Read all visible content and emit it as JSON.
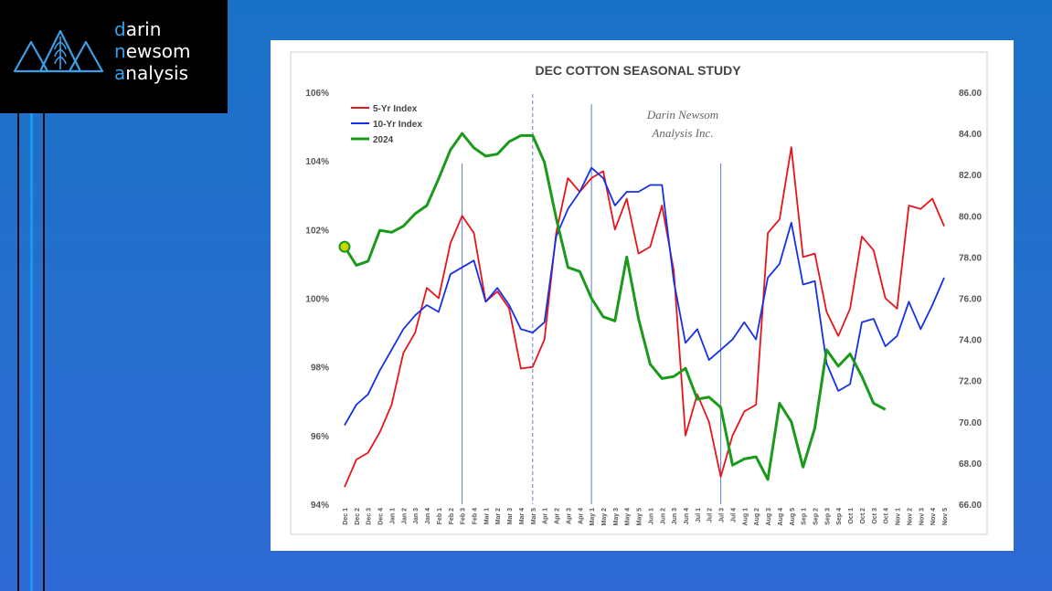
{
  "brand": {
    "line1_accent": "d",
    "line1_rest": "arin",
    "line2_accent": "n",
    "line2_rest": "ewsom",
    "line3_accent": "a",
    "line3_rest": "nalysis"
  },
  "colors": {
    "background": "#1f6fcc",
    "accent": "#3aa0ea",
    "series_5yr": "#e8141c",
    "series_10yr": "#1630e6",
    "series_2024": "#1a9a1a"
  },
  "chart_data": {
    "type": "line",
    "title": "DEC COTTON SEASONAL STUDY",
    "watermark": [
      "Darin Newsom",
      "Analysis Inc."
    ],
    "xlabel": "",
    "ylabel": "",
    "y_left_ticks": [
      "94%",
      "96%",
      "98%",
      "100%",
      "102%",
      "104%",
      "106%"
    ],
    "y_left_range": [
      94,
      106
    ],
    "y_right_ticks": [
      "66.00",
      "68.00",
      "70.00",
      "72.00",
      "74.00",
      "76.00",
      "78.00",
      "80.00",
      "82.00",
      "84.00",
      "86.00"
    ],
    "y_right_range": [
      66,
      86
    ],
    "legend_position": "top-left",
    "grid": false,
    "categories": [
      "Dec 1",
      "Dec 2",
      "Dec 3",
      "Dec 4",
      "Jan 1",
      "Jan 2",
      "Jan 3",
      "Jan 4",
      "Feb 1",
      "Feb 2",
      "Feb 3",
      "Feb 4",
      "Mar 1",
      "Mar 2",
      "Mar 3",
      "Mar 4",
      "Mar 5",
      "Apr 1",
      "Apr 2",
      "Apr 3",
      "Apr 4",
      "May 1",
      "May 2",
      "May 3",
      "May 4",
      "May 5",
      "Jun 1",
      "Jun 2",
      "Jun 3",
      "Jun 4",
      "Jul 1",
      "Jul 2",
      "Jul 3",
      "Jul 4",
      "Aug 1",
      "Aug 2",
      "Aug 3",
      "Aug 4",
      "Aug 5",
      "Sep 1",
      "Sep 2",
      "Sep 3",
      "Sep 4",
      "Oct 1",
      "Oct 2",
      "Oct 3",
      "Oct 4",
      "Nov 1",
      "Nov 2",
      "Nov 3",
      "Nov 4",
      "Nov 5"
    ],
    "vertical_markers": [
      {
        "category": "Feb 3",
        "style": "solid"
      },
      {
        "category": "Mar 5",
        "style": "dashed"
      },
      {
        "category": "May 1",
        "style": "solid"
      },
      {
        "category": "Jul 3",
        "style": "solid"
      }
    ],
    "series": [
      {
        "name": "5-Yr Index",
        "axis": "left",
        "values": [
          94.5,
          95.3,
          95.5,
          96.1,
          96.9,
          98.4,
          99.0,
          100.3,
          100.0,
          101.6,
          102.4,
          101.9,
          99.9,
          100.2,
          99.7,
          97.95,
          98.0,
          98.8,
          101.9,
          103.5,
          103.1,
          103.5,
          103.7,
          102.0,
          102.9,
          101.3,
          101.5,
          102.7,
          100.8,
          96.0,
          97.2,
          96.4,
          94.8,
          96.0,
          96.7,
          96.9,
          101.9,
          102.3,
          104.4,
          101.2,
          101.3,
          99.6,
          98.9,
          99.7,
          101.8,
          101.4,
          100.0,
          99.7,
          102.7,
          102.6,
          102.9,
          102.1
        ]
      },
      {
        "name": "10-Yr Index",
        "axis": "left",
        "values": [
          96.3,
          96.9,
          97.2,
          97.9,
          98.5,
          99.1,
          99.5,
          99.8,
          99.6,
          100.7,
          100.9,
          101.1,
          99.9,
          100.3,
          99.8,
          99.1,
          99.0,
          99.3,
          101.8,
          102.6,
          103.1,
          103.8,
          103.5,
          102.7,
          103.1,
          103.1,
          103.3,
          103.3,
          100.5,
          98.7,
          99.1,
          98.2,
          98.5,
          98.8,
          99.3,
          98.8,
          100.6,
          101.0,
          102.2,
          100.4,
          100.5,
          98.1,
          97.3,
          97.5,
          99.3,
          99.4,
          98.6,
          98.9,
          99.9,
          99.1,
          99.8,
          100.6
        ]
      },
      {
        "name": "2024",
        "axis": "right",
        "values": [
          78.5,
          77.6,
          77.8,
          79.3,
          79.2,
          79.5,
          80.1,
          80.5,
          81.8,
          83.2,
          84.0,
          83.3,
          82.9,
          83.0,
          83.6,
          83.9,
          83.9,
          82.6,
          79.9,
          77.5,
          77.3,
          76.0,
          75.1,
          74.9,
          78.0,
          75.0,
          72.8,
          72.1,
          72.2,
          72.6,
          71.1,
          71.2,
          70.7,
          67.9,
          68.2,
          68.3,
          67.2,
          70.9,
          70.0,
          67.8,
          69.7,
          73.5,
          72.7,
          73.3,
          72.2,
          70.9,
          70.6,
          null,
          null,
          null,
          null,
          null
        ]
      }
    ]
  }
}
